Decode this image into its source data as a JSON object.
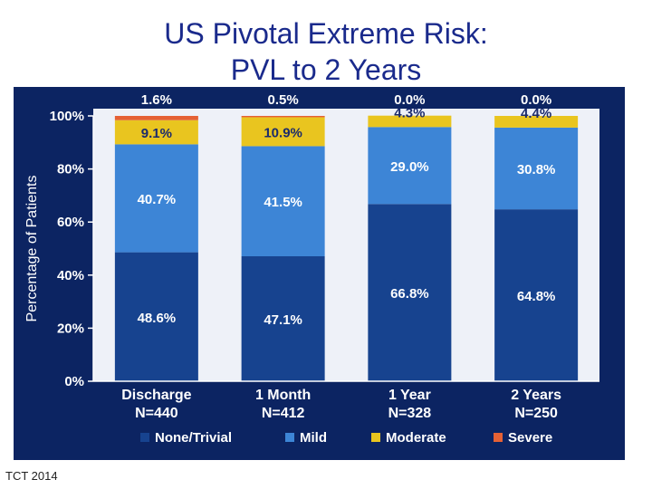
{
  "title_line1": "US Pivotal Extreme Risk:",
  "title_line2": "PVL to 2 Years",
  "footer": "TCT 2014",
  "colors": {
    "panel": "#0c2462",
    "plot_bg": "#eef1f8",
    "none_trivial": "#17438f",
    "mild": "#3d85d6",
    "moderate": "#e9c51f",
    "severe": "#e56135",
    "axis_text": "#ffffff",
    "label_dark": "#1a2a6c"
  },
  "chart_data": {
    "type": "bar",
    "stacked": true,
    "ylabel": "Percentage of Patients",
    "ylim": [
      0,
      100
    ],
    "yticks": [
      "0%",
      "20%",
      "40%",
      "60%",
      "80%",
      "100%"
    ],
    "categories": [
      "Discharge",
      "1 Month",
      "1 Year",
      "2 Years"
    ],
    "category_sublabels": [
      "N=440",
      "N=412",
      "N=328",
      "N=250"
    ],
    "series": [
      {
        "name": "None/Trivial",
        "values": [
          48.6,
          47.1,
          66.8,
          64.8
        ],
        "labels": [
          "48.6%",
          "47.1%",
          "66.8%",
          "64.8%"
        ]
      },
      {
        "name": "Mild",
        "values": [
          40.7,
          41.5,
          29.0,
          30.8
        ],
        "labels": [
          "40.7%",
          "41.5%",
          "29.0%",
          "30.8%"
        ]
      },
      {
        "name": "Moderate",
        "values": [
          9.1,
          10.9,
          4.3,
          4.4
        ],
        "labels": [
          "9.1%",
          "10.9%",
          "4.3%",
          "4.4%"
        ]
      },
      {
        "name": "Severe",
        "values": [
          1.6,
          0.5,
          0.0,
          0.0
        ],
        "labels": [
          "1.6%",
          "0.5%",
          "0.0%",
          "0.0%"
        ]
      }
    ],
    "legend_position": "bottom",
    "grid": false
  }
}
